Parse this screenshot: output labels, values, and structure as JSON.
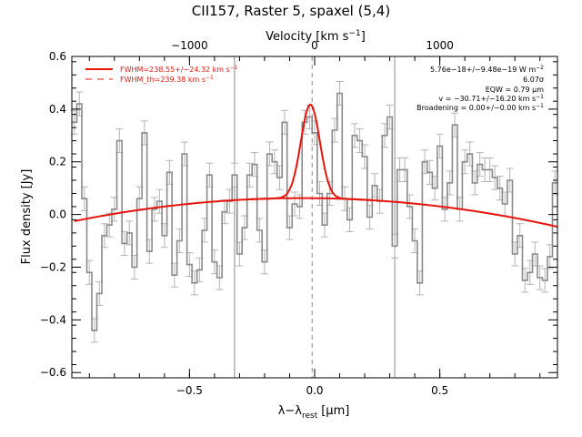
{
  "chart_data": {
    "type": "line",
    "title": "CII157, Raster 5, spaxel (5,4)",
    "xlabel": "λ−λ",
    "xlabel_sub": "rest",
    "xlabel_unit": "[μm]",
    "ylabel": "Flux density [Jy]",
    "top_axis_label": "Velocity [km s",
    "top_axis_label_sup": "−1",
    "top_axis_label_end": "]",
    "xlim": [
      -0.97,
      0.97
    ],
    "ylim": [
      -0.62,
      0.6
    ],
    "x_ticks": [
      {
        "v": -0.5,
        "label": "−0.5"
      },
      {
        "v": 0.0,
        "label": "0.0"
      },
      {
        "v": 0.5,
        "label": "0.5"
      }
    ],
    "y_ticks": [
      {
        "v": -0.6,
        "label": "−0.6"
      },
      {
        "v": -0.4,
        "label": "−0.4"
      },
      {
        "v": -0.2,
        "label": "−0.2"
      },
      {
        "v": 0.0,
        "label": "0.0"
      },
      {
        "v": 0.2,
        "label": "0.2"
      },
      {
        "v": 0.4,
        "label": "0.4"
      },
      {
        "v": 0.6,
        "label": "0.6"
      }
    ],
    "top_ticks": [
      {
        "v": -0.5,
        "label": "−1000"
      },
      {
        "v": 0.0,
        "label": "0"
      },
      {
        "v": 0.5,
        "label": "1000"
      }
    ],
    "vertical_lines": [
      -0.32,
      0.32
    ],
    "dashed_line": -0.01,
    "spectrum": {
      "x": [
        -0.96,
        -0.94,
        -0.92,
        -0.9,
        -0.88,
        -0.86,
        -0.84,
        -0.82,
        -0.8,
        -0.78,
        -0.76,
        -0.74,
        -0.72,
        -0.7,
        -0.68,
        -0.66,
        -0.64,
        -0.62,
        -0.6,
        -0.58,
        -0.56,
        -0.54,
        -0.52,
        -0.5,
        -0.48,
        -0.46,
        -0.44,
        -0.42,
        -0.4,
        -0.38,
        -0.36,
        -0.34,
        -0.32,
        -0.3,
        -0.28,
        -0.26,
        -0.24,
        -0.22,
        -0.2,
        -0.18,
        -0.16,
        -0.14,
        -0.12,
        -0.1,
        -0.08,
        -0.06,
        -0.04,
        -0.02,
        0.0,
        0.02,
        0.04,
        0.06,
        0.08,
        0.1,
        0.12,
        0.14,
        0.16,
        0.18,
        0.2,
        0.22,
        0.24,
        0.26,
        0.28,
        0.3,
        0.32,
        0.34,
        0.36,
        0.38,
        0.4,
        0.42,
        0.44,
        0.46,
        0.48,
        0.5,
        0.52,
        0.54,
        0.56,
        0.58,
        0.6,
        0.62,
        0.64,
        0.66,
        0.68,
        0.7,
        0.72,
        0.74,
        0.76,
        0.78,
        0.8,
        0.82,
        0.84,
        0.86,
        0.88,
        0.9,
        0.92,
        0.94,
        0.96
      ],
      "y": [
        0.35,
        0.42,
        0.06,
        -0.22,
        -0.44,
        -0.3,
        -0.08,
        -0.04,
        0.02,
        0.28,
        -0.11,
        -0.07,
        -0.2,
        0.06,
        0.31,
        -0.14,
        0.02,
        0.05,
        -0.08,
        0.16,
        -0.23,
        -0.1,
        0.23,
        -0.19,
        -0.26,
        -0.21,
        -0.06,
        0.15,
        -0.18,
        -0.24,
        0.01,
        0.05,
        0.15,
        -0.15,
        -0.05,
        0.15,
        0.19,
        -0.06,
        -0.18,
        0.23,
        0.2,
        0.14,
        0.35,
        -0.05,
        0.04,
        0.03,
        0.35,
        0.37,
        0.31,
        0.08,
        -0.04,
        0.08,
        0.32,
        0.46,
        0.06,
        -0.02,
        0.3,
        0.28,
        0.22,
        -0.01,
        0.11,
        0.05,
        0.3,
        0.37,
        -0.12,
        0.17,
        0.17,
        0.03,
        -0.1,
        -0.26,
        0.2,
        0.16,
        0.1,
        0.26,
        0.02,
        0.12,
        0.34,
        0.02,
        0.2,
        0.23,
        0.12,
        0.19,
        0.17,
        0.17,
        0.14,
        0.1,
        0.04,
        0.13,
        -0.15,
        -0.08,
        -0.25,
        -0.22,
        -0.15,
        -0.24,
        -0.25,
        -0.16,
        0.12
      ],
      "err": 0.045
    },
    "series": [
      {
        "name": "FWHM=238.55+/−24.32 km s",
        "name_sup": "−1",
        "style": "solid",
        "color": "#e8140c"
      },
      {
        "name": "FWHM_th=239.38 km s",
        "name_sup": "−1",
        "style": "dashed",
        "color": "#e8140c"
      }
    ],
    "fit": {
      "continuum": {
        "c0": 0.062,
        "c1": -0.01,
        "c2": -0.105
      },
      "gaussian": {
        "center": -0.017,
        "sigma": 0.038,
        "amplitude": 0.355
      }
    },
    "annotations": [
      {
        "text": "5.76e−18+/−9.48e−19 W m",
        "sup": "−2"
      },
      {
        "text": "6.07σ",
        "sup": ""
      },
      {
        "text": "EQW = 0.79 μm",
        "sup": ""
      },
      {
        "text": "v = −30.71+/−16.20 km s",
        "sup": "−1"
      },
      {
        "text": "Broadening = 0.00+/−0.00 km s",
        "sup": "−1"
      }
    ],
    "colors": {
      "spectrum": "#8a8a8a",
      "errorbar": "#b4b4b4",
      "fit": "#e8140c",
      "axes": "#000000"
    }
  }
}
